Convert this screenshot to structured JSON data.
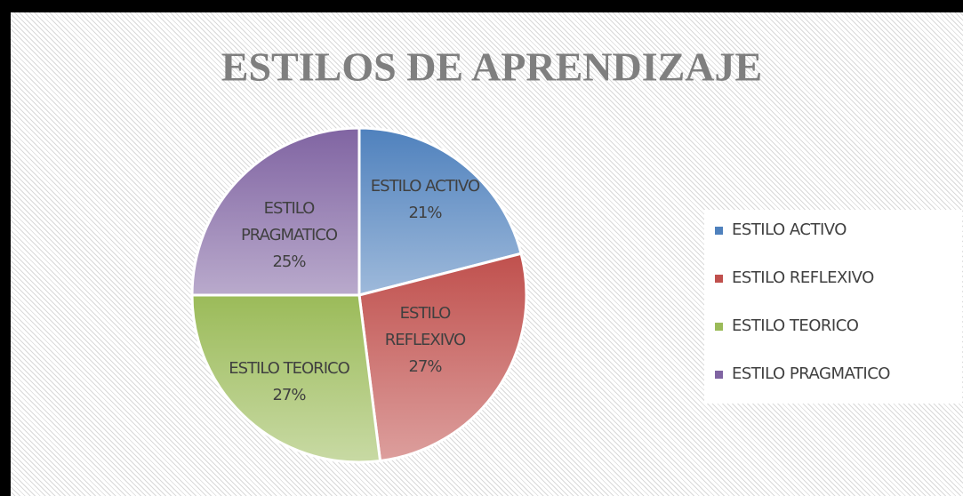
{
  "chart_data": {
    "type": "pie",
    "title": "ESTILOS DE APRENDIZAJE",
    "categories": [
      "ESTILO ACTIVO",
      "ESTILO REFLEXIVO",
      "ESTILO TEORICO",
      "ESTILO PRAGMATICO"
    ],
    "values": [
      21,
      27,
      27,
      25
    ],
    "value_labels": [
      "21%",
      "27%",
      "27%",
      "25%"
    ],
    "colors": [
      "#4f81bd",
      "#c0504d",
      "#9bbb59",
      "#8064a2"
    ],
    "legend": "right"
  }
}
